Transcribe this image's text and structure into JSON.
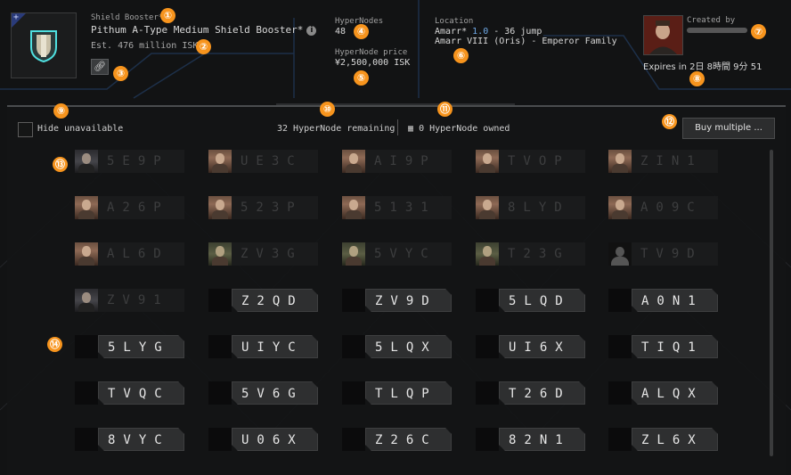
{
  "item": {
    "category": "Shield Booster*",
    "name": "Pithum A-Type Medium Shield Booster*",
    "estimate": "Est. 476 million ISK"
  },
  "hypernodes": {
    "label": "HyperNodes",
    "value": "48"
  },
  "hypernode_price": {
    "label": "HyperNode price",
    "value": "¥2,500,000 ISK"
  },
  "location": {
    "label": "Location",
    "region": "Amarr*",
    "security": "1.0",
    "jumps": "- 36 jump",
    "station": "Amarr VIII (Oris) - Emperor Family"
  },
  "creator": {
    "label": "Created by"
  },
  "expiry": {
    "text": "Expires in 2日 8時間 9分 51"
  },
  "toolbar": {
    "hide_unavailable": "Hide unavailable",
    "remaining": "32 HyperNode remaining",
    "owned": "0 HyperNode owned",
    "buy_multiple": "Buy multiple ..."
  },
  "annotations": [
    "①",
    "②",
    "③",
    "④",
    "⑤",
    "⑥",
    "⑦",
    "⑧",
    "⑨",
    "⑩",
    "⑪",
    "⑫",
    "⑬",
    "⑭"
  ],
  "nodes": [
    {
      "code": "5E9P",
      "status": "taken",
      "avatar": "dark"
    },
    {
      "code": "UE3C",
      "status": "taken",
      "avatar": "avatar"
    },
    {
      "code": "AI9P",
      "status": "taken",
      "avatar": "avatar"
    },
    {
      "code": "TVOP",
      "status": "taken",
      "avatar": "avatar"
    },
    {
      "code": "ZIN1",
      "status": "taken",
      "avatar": "avatar"
    },
    {
      "code": "A26P",
      "status": "taken",
      "avatar": "avatar"
    },
    {
      "code": "523P",
      "status": "taken",
      "avatar": "avatar"
    },
    {
      "code": "5131",
      "status": "taken",
      "avatar": "avatar"
    },
    {
      "code": "8LYD",
      "status": "taken",
      "avatar": "avatar"
    },
    {
      "code": "A09C",
      "status": "taken",
      "avatar": "avatar"
    },
    {
      "code": "AL6D",
      "status": "taken",
      "avatar": "avatar"
    },
    {
      "code": "ZV3G",
      "status": "taken",
      "avatar": "green"
    },
    {
      "code": "5VYC",
      "status": "taken",
      "avatar": "green"
    },
    {
      "code": "T23G",
      "status": "taken",
      "avatar": "green"
    },
    {
      "code": "TV9D",
      "status": "taken",
      "avatar": "silhouette"
    },
    {
      "code": "ZV91",
      "status": "taken",
      "avatar": "dark"
    },
    {
      "code": "Z2QD",
      "status": "free",
      "avatar": ""
    },
    {
      "code": "ZV9D",
      "status": "free",
      "avatar": ""
    },
    {
      "code": "5LQD",
      "status": "free",
      "avatar": ""
    },
    {
      "code": "A0N1",
      "status": "free",
      "avatar": ""
    },
    {
      "code": "5LYG",
      "status": "free",
      "avatar": ""
    },
    {
      "code": "UIYC",
      "status": "free",
      "avatar": ""
    },
    {
      "code": "5LQX",
      "status": "free",
      "avatar": ""
    },
    {
      "code": "UI6X",
      "status": "free",
      "avatar": ""
    },
    {
      "code": "TIQ1",
      "status": "free",
      "avatar": ""
    },
    {
      "code": "TVQC",
      "status": "free",
      "avatar": ""
    },
    {
      "code": "5V6G",
      "status": "free",
      "avatar": ""
    },
    {
      "code": "TLQP",
      "status": "free",
      "avatar": ""
    },
    {
      "code": "T26D",
      "status": "free",
      "avatar": ""
    },
    {
      "code": "ALQX",
      "status": "free",
      "avatar": ""
    },
    {
      "code": "8VYC",
      "status": "free",
      "avatar": ""
    },
    {
      "code": "U06X",
      "status": "free",
      "avatar": ""
    },
    {
      "code": "Z26C",
      "status": "free",
      "avatar": ""
    },
    {
      "code": "82N1",
      "status": "free",
      "avatar": ""
    },
    {
      "code": "ZL6X",
      "status": "free",
      "avatar": ""
    }
  ]
}
